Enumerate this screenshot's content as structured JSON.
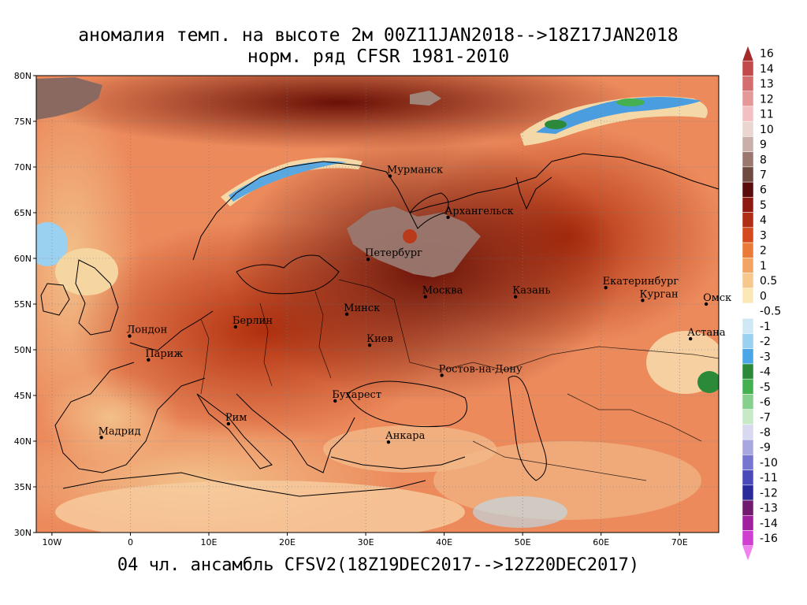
{
  "title_line1": "аномалия темп. на высоте 2м 00Z11JAN2018-->18Z17JAN2018",
  "title_line2": "норм. ряд CFSR 1981-2010",
  "footer": "04 чл. ансамбль CFSV2(18Z19DEC2017-->12Z20DEC2017)",
  "map": {
    "lon_range": [
      -12,
      75
    ],
    "lat_range": [
      30,
      80
    ],
    "lat_ticks": [
      "30N",
      "35N",
      "40N",
      "45N",
      "50N",
      "55N",
      "60N",
      "65N",
      "70N",
      "75N",
      "80N"
    ],
    "lon_ticks": [
      "10W",
      "0",
      "10E",
      "20E",
      "30E",
      "40E",
      "50E",
      "60E",
      "70E"
    ],
    "ocean_color": "#ec8a5c",
    "grid": true
  },
  "cities": [
    {
      "name": "Мурманск",
      "lon": 33.1,
      "lat": 69.0
    },
    {
      "name": "Архангельск",
      "lon": 40.5,
      "lat": 64.5
    },
    {
      "name": "Петербург",
      "lon": 30.3,
      "lat": 59.9
    },
    {
      "name": "Москва",
      "lon": 37.6,
      "lat": 55.8
    },
    {
      "name": "Казань",
      "lon": 49.1,
      "lat": 55.8
    },
    {
      "name": "Екатеринбург",
      "lon": 60.6,
      "lat": 56.8
    },
    {
      "name": "Курган",
      "lon": 65.3,
      "lat": 55.4
    },
    {
      "name": "Омск",
      "lon": 73.4,
      "lat": 55.0
    },
    {
      "name": "Астана",
      "lon": 71.4,
      "lat": 51.2
    },
    {
      "name": "Минск",
      "lon": 27.6,
      "lat": 53.9
    },
    {
      "name": "Киев",
      "lon": 30.5,
      "lat": 50.5
    },
    {
      "name": "Берлин",
      "lon": 13.4,
      "lat": 52.5
    },
    {
      "name": "Лондон",
      "lon": -0.1,
      "lat": 51.5
    },
    {
      "name": "Париж",
      "lon": 2.3,
      "lat": 48.9
    },
    {
      "name": "Ростов-на-Дону",
      "lon": 39.7,
      "lat": 47.2
    },
    {
      "name": "Бухарест",
      "lon": 26.1,
      "lat": 44.4
    },
    {
      "name": "Рим",
      "lon": 12.5,
      "lat": 41.9
    },
    {
      "name": "Мадрид",
      "lon": -3.7,
      "lat": 40.4
    },
    {
      "name": "Анкара",
      "lon": 32.9,
      "lat": 39.9
    }
  ],
  "colorbar": {
    "labels": [
      "16",
      "14",
      "13",
      "12",
      "11",
      "10",
      "9",
      "8",
      "7",
      "6",
      "5",
      "4",
      "3",
      "2",
      "1",
      "0.5",
      "0",
      "-0.5",
      "-1",
      "-2",
      "-3",
      "-4",
      "-5",
      "-6",
      "-7",
      "-8",
      "-9",
      "-10",
      "-11",
      "-12",
      "-13",
      "-14",
      "-16"
    ],
    "colors": [
      "#a52a2a",
      "#c24a4a",
      "#d46e6e",
      "#e59898",
      "#f2c0c0",
      "#ead6d0",
      "#c8b0a8",
      "#9a7870",
      "#6e4a40",
      "#5a0c0c",
      "#8e1a12",
      "#b02e16",
      "#d44a1e",
      "#ea7a3a",
      "#f2a464",
      "#f6c88e",
      "#fce8b4",
      "#ffffff",
      "#cfe8f6",
      "#9ad0f0",
      "#4aa6e6",
      "#2a8a3a",
      "#44b050",
      "#86d08e",
      "#c6eac6",
      "#d8d8f0",
      "#a8a8e0",
      "#7676d0",
      "#4a4ab8",
      "#2a2a9a",
      "#701a70",
      "#a020a0",
      "#d040d0",
      "#ee82ee"
    ]
  }
}
